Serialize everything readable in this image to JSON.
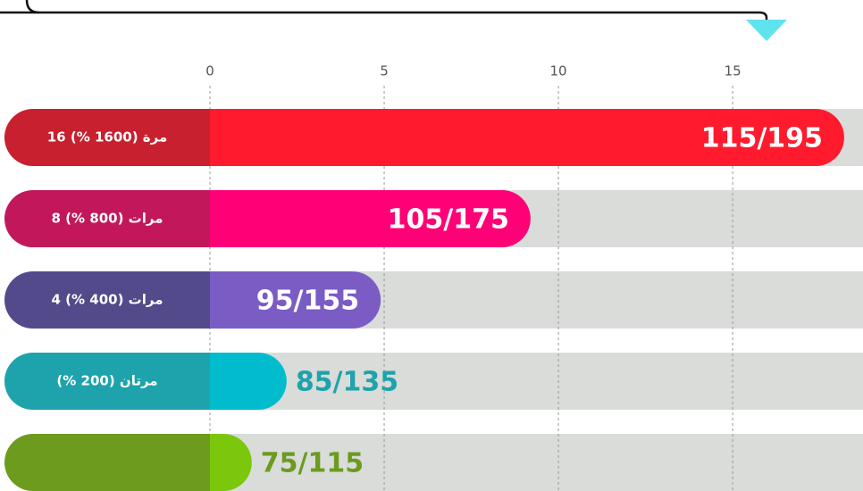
{
  "chart_data": {
    "type": "bar",
    "orientation": "horizontal",
    "categories": [
      "16 مرة (1600 %)",
      "8 مرات (800 %)",
      "4 مرات (400 %)",
      "مرتان (200 %)",
      null
    ],
    "values": [
      18.2,
      9.2,
      4.9,
      2.2,
      1.2
    ],
    "bar_labels": [
      "115/195",
      "105/175",
      "95/155",
      "85/135",
      "75/115"
    ],
    "colors": [
      "#ff1a2e",
      "#ff0077",
      "#7a5cc4",
      "#00bccc",
      "#7ac70c"
    ],
    "label_colors": [
      "#c8202e",
      "#c2185b",
      "#524a8a",
      "#1ea3ac",
      "#6c9b1e"
    ],
    "xlim": [
      0,
      18.74
    ],
    "xticks": [
      0,
      5,
      10,
      15
    ],
    "grid": true
  }
}
